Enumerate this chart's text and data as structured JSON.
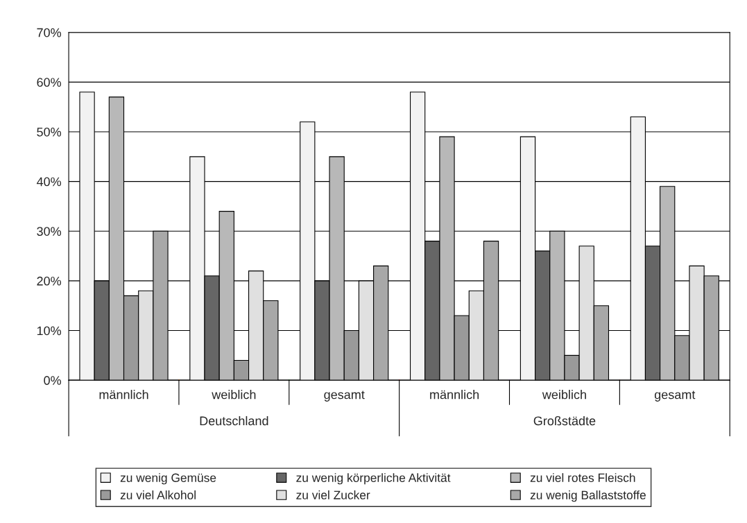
{
  "chart_data": {
    "type": "bar",
    "categories": [
      "männlich",
      "weiblich",
      "gesamt",
      "männlich",
      "weiblich",
      "gesamt"
    ],
    "series": [
      {
        "name": "zu wenig Gemüse",
        "color": "#f2f2f2",
        "values": [
          58,
          45,
          52,
          58,
          49,
          53
        ]
      },
      {
        "name": "zu wenig körperliche Aktivität",
        "color": "#666666",
        "values": [
          20,
          21,
          20,
          28,
          26,
          27
        ]
      },
      {
        "name": "zu viel rotes Fleisch",
        "color": "#b8b8b8",
        "values": [
          57,
          34,
          45,
          49,
          30,
          39
        ]
      },
      {
        "name": "zu viel Alkohol",
        "color": "#9a9a9a",
        "values": [
          17,
          4,
          10,
          13,
          5,
          9
        ]
      },
      {
        "name": "zu viel Zucker",
        "color": "#e0e0e0",
        "values": [
          18,
          22,
          20,
          18,
          27,
          23
        ]
      },
      {
        "name": "zu wenig Ballaststoffe",
        "color": "#a8a8a8",
        "values": [
          30,
          16,
          23,
          28,
          15,
          21
        ]
      }
    ],
    "annotations": [
      "Deutschland",
      "Großstädte"
    ],
    "ylim": [
      0,
      70
    ],
    "yticks": [
      {
        "value": 0,
        "label": "0%"
      },
      {
        "value": 10,
        "label": "10%"
      },
      {
        "value": 20,
        "label": "20%"
      },
      {
        "value": 30,
        "label": "30%"
      },
      {
        "value": 40,
        "label": "40%"
      },
      {
        "value": 50,
        "label": "50%"
      },
      {
        "value": 60,
        "label": "60%"
      },
      {
        "value": 70,
        "label": "70%"
      }
    ],
    "grid": "y",
    "legend": "bottom"
  }
}
